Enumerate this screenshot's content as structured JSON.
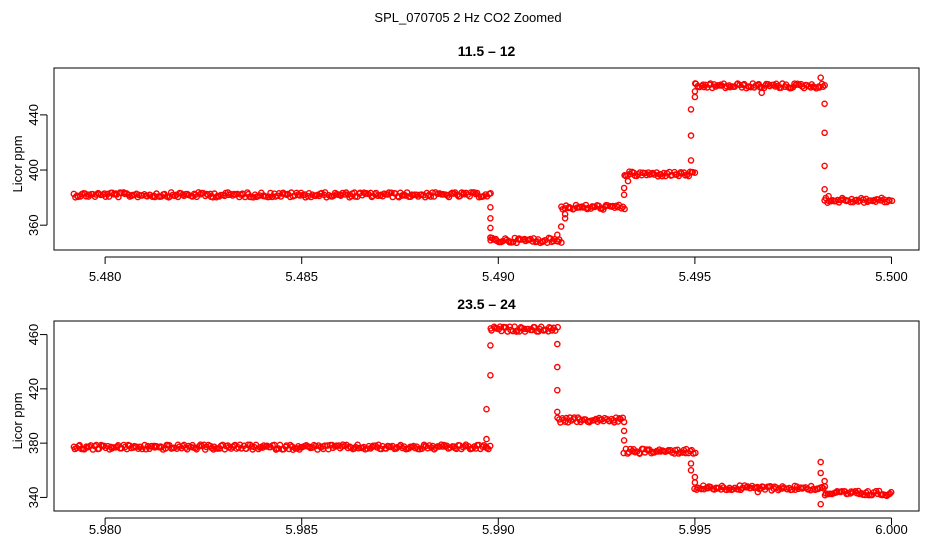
{
  "figure_title": "SPL_070705  2 Hz CO2 Zoomed",
  "chart_data": [
    {
      "type": "scatter",
      "title": "11.5 – 12",
      "xlabel": "",
      "ylabel": "Licor ppm",
      "xlim": [
        5.4787,
        5.5007
      ],
      "ylim": [
        342,
        474
      ],
      "xticks": [
        5.48,
        5.485,
        5.49,
        5.495,
        5.5
      ],
      "xtick_labels": [
        "5.480",
        "5.485",
        "5.490",
        "5.495",
        "5.500"
      ],
      "yticks": [
        360,
        400,
        440
      ],
      "ytick_labels": [
        "360",
        "400",
        "440"
      ],
      "grid": false,
      "marker_color": "#ff0000",
      "segments": [
        {
          "x": [
            5.4792,
            5.4898
          ],
          "y": 382
        },
        {
          "x": [
            5.4898,
            5.4916
          ],
          "y": 349
        },
        {
          "x": [
            5.4916,
            5.4932
          ],
          "y": 373
        },
        {
          "x": [
            5.4932,
            5.495
          ],
          "y": 397
        },
        {
          "x": [
            5.495,
            5.4983
          ],
          "y": 461
        },
        {
          "x": [
            5.4983,
            5.5
          ],
          "y": 378
        }
      ],
      "transition_points": [
        {
          "x": 5.4898,
          "y": 373
        },
        {
          "x": 5.4898,
          "y": 365
        },
        {
          "x": 5.4898,
          "y": 358
        },
        {
          "x": 5.4898,
          "y": 351
        },
        {
          "x": 5.4915,
          "y": 353
        },
        {
          "x": 5.4916,
          "y": 359
        },
        {
          "x": 5.4917,
          "y": 365
        },
        {
          "x": 5.4917,
          "y": 368
        },
        {
          "x": 5.4932,
          "y": 382
        },
        {
          "x": 5.4932,
          "y": 387
        },
        {
          "x": 5.4933,
          "y": 392
        },
        {
          "x": 5.4949,
          "y": 407
        },
        {
          "x": 5.4949,
          "y": 425
        },
        {
          "x": 5.4949,
          "y": 444
        },
        {
          "x": 5.495,
          "y": 453
        },
        {
          "x": 5.495,
          "y": 457
        },
        {
          "x": 5.4982,
          "y": 467
        },
        {
          "x": 5.4983,
          "y": 448
        },
        {
          "x": 5.4983,
          "y": 427
        },
        {
          "x": 5.4983,
          "y": 403
        },
        {
          "x": 5.4983,
          "y": 386
        },
        {
          "x": 5.4984,
          "y": 381
        },
        {
          "x": 5.4967,
          "y": 456
        }
      ]
    },
    {
      "type": "scatter",
      "title": "23.5 – 24",
      "xlabel": "",
      "ylabel": "Licor ppm",
      "xlim": [
        5.9787,
        6.0007
      ],
      "ylim": [
        330,
        470
      ],
      "xticks": [
        5.98,
        5.985,
        5.99,
        5.995,
        6.0
      ],
      "xtick_labels": [
        "5.980",
        "5.985",
        "5.990",
        "5.995",
        "6.000"
      ],
      "yticks": [
        340,
        380,
        420,
        460
      ],
      "ytick_labels": [
        "340",
        "380",
        "420",
        "460"
      ],
      "grid": false,
      "marker_color": "#ff0000",
      "segments": [
        {
          "x": [
            5.9792,
            5.9898
          ],
          "y": 377
        },
        {
          "x": [
            5.9898,
            5.9915
          ],
          "y": 464
        },
        {
          "x": [
            5.9915,
            5.9932
          ],
          "y": 397
        },
        {
          "x": [
            5.9932,
            5.995
          ],
          "y": 374
        },
        {
          "x": [
            5.995,
            5.9983
          ],
          "y": 347
        },
        {
          "x": [
            5.9983,
            6.0
          ],
          "y": 343
        }
      ],
      "transition_points": [
        {
          "x": 5.9897,
          "y": 383
        },
        {
          "x": 5.9897,
          "y": 405
        },
        {
          "x": 5.9898,
          "y": 430
        },
        {
          "x": 5.9898,
          "y": 452
        },
        {
          "x": 5.9915,
          "y": 453
        },
        {
          "x": 5.9915,
          "y": 436
        },
        {
          "x": 5.9915,
          "y": 419
        },
        {
          "x": 5.9915,
          "y": 403
        },
        {
          "x": 5.9932,
          "y": 389
        },
        {
          "x": 5.9932,
          "y": 382
        },
        {
          "x": 5.9949,
          "y": 365
        },
        {
          "x": 5.9949,
          "y": 360
        },
        {
          "x": 5.995,
          "y": 355
        },
        {
          "x": 5.995,
          "y": 351
        },
        {
          "x": 5.9982,
          "y": 366
        },
        {
          "x": 5.9982,
          "y": 358
        },
        {
          "x": 5.9983,
          "y": 352
        },
        {
          "x": 5.9982,
          "y": 335
        },
        {
          "x": 5.9966,
          "y": 344
        }
      ]
    }
  ]
}
